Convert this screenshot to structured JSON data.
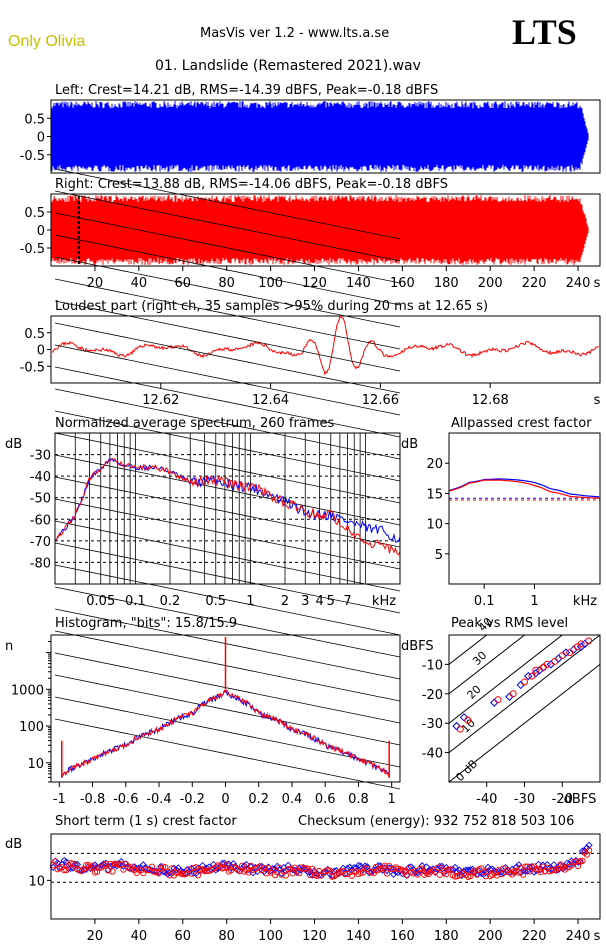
{
  "header": {
    "app_title": "MasVis ver 1.2 - www.lts.a.se",
    "brand": "Only Olivia",
    "logo_text": "LTS",
    "file_name": "01. Landslide (Remastered 2021).wav"
  },
  "colors": {
    "left": "#0000ff",
    "right": "#ff0000",
    "brand": "#c8c000"
  },
  "chart_data": [
    {
      "id": "left_waveform",
      "type": "area",
      "title": "Left: Crest=14.21 dB, RMS=-14.39 dBFS, Peak=-0.18 dBFS",
      "ylim": [
        -1,
        1
      ],
      "yticks": [
        "0.5",
        "0",
        "-0.5"
      ],
      "xlim": [
        0,
        250
      ],
      "series": [
        {
          "color": "#0000ff",
          "envelope": 0.97,
          "fade_out_start": 241,
          "end": 245
        }
      ]
    },
    {
      "id": "right_waveform",
      "type": "area",
      "title": "Right: Crest=13.88 dB, RMS=-14.06 dBFS, Peak=-0.18 dBFS",
      "ylim": [
        -1,
        1
      ],
      "yticks": [
        "0.5",
        "0",
        "-0.5"
      ],
      "xlim": [
        0,
        250
      ],
      "xticks": [
        "20",
        "40",
        "60",
        "80",
        "100",
        "120",
        "140",
        "160",
        "180",
        "200",
        "220",
        "240"
      ],
      "xunit": "s",
      "marker_at": 12.65,
      "series": [
        {
          "color": "#ff0000",
          "envelope": 0.97,
          "fade_out_start": 241,
          "end": 245
        }
      ]
    },
    {
      "id": "loudest_part",
      "type": "line",
      "title": "Loudest part (right ch, 35 samples >95% during 20 ms at 12.65 s)",
      "ylim": [
        -1,
        1
      ],
      "yticks": [
        "0.5",
        "0",
        "-0.5"
      ],
      "xlim": [
        12.6,
        12.7
      ],
      "xticks": [
        "12.62",
        "12.64",
        "12.66",
        "12.68"
      ],
      "xunit": "s",
      "series": [
        {
          "color": "#ff0000"
        }
      ]
    },
    {
      "id": "spectrum",
      "type": "line",
      "title": "Normalized average spectrum, 260 frames",
      "ylabel": "dB",
      "yticks": [
        "-30",
        "-40",
        "-50",
        "-60",
        "-70",
        "-80"
      ],
      "ylim": [
        -90,
        -20
      ],
      "xlog": true,
      "xlim": [
        0.02,
        20
      ],
      "xticks": [
        "0.05",
        "0.1",
        "0.2",
        "0.5",
        "1",
        "2",
        "3",
        "4",
        "5",
        "7"
      ],
      "xunit": "kHz",
      "series": [
        {
          "color": "#ff0000",
          "x": [
            0.02,
            0.03,
            0.04,
            0.06,
            0.08,
            0.1,
            0.15,
            0.2,
            0.3,
            0.5,
            0.7,
            1,
            1.5,
            2,
            3,
            5,
            7,
            10,
            15,
            20
          ],
          "y": [
            -69,
            -58,
            -41,
            -32,
            -35,
            -36,
            -36,
            -38,
            -43,
            -42,
            -44,
            -45,
            -49,
            -52,
            -57,
            -58,
            -64,
            -70,
            -73,
            -76
          ]
        },
        {
          "color": "#0000ff",
          "x": [
            0.02,
            0.03,
            0.04,
            0.06,
            0.08,
            0.1,
            0.15,
            0.2,
            0.3,
            0.5,
            0.7,
            1,
            1.5,
            2,
            3,
            5,
            7,
            10,
            15,
            20
          ],
          "y": [
            -69,
            -58,
            -41,
            -32,
            -35,
            -36,
            -36,
            -38,
            -43,
            -42,
            -44,
            -45,
            -49,
            -52,
            -57,
            -58,
            -61,
            -64,
            -66,
            -70
          ]
        }
      ]
    },
    {
      "id": "allpassed_crest",
      "type": "line",
      "title": "Allpassed crest factor",
      "ylabel": "dB",
      "yticks": [
        "20",
        "15",
        "10",
        "5"
      ],
      "ylim": [
        0,
        25
      ],
      "xlog": true,
      "xlim": [
        0.02,
        20
      ],
      "xticks": [
        "0.1",
        "1"
      ],
      "xunit": "kHz",
      "series": [
        {
          "color": "#0000ff",
          "x": [
            0.02,
            0.05,
            0.1,
            0.2,
            0.5,
            1,
            2,
            5,
            10,
            20
          ],
          "y": [
            15.5,
            16.8,
            17.3,
            17.4,
            17.2,
            16.8,
            15.8,
            14.9,
            14.6,
            14.4
          ]
        },
        {
          "color": "#ff0000",
          "x": [
            0.02,
            0.05,
            0.1,
            0.2,
            0.5,
            1,
            2,
            5,
            10,
            20
          ],
          "y": [
            15.4,
            16.7,
            17.2,
            17.2,
            16.9,
            16.3,
            15.3,
            14.5,
            14.3,
            14.2
          ]
        }
      ],
      "reference_lines": [
        {
          "color": "#0000ff",
          "y": 14.2
        },
        {
          "color": "#ff0000",
          "y": 13.9
        }
      ]
    },
    {
      "id": "histogram",
      "type": "line",
      "title": "Histogram, \"bits\": 15.8/15.9",
      "ylabel": "n",
      "ylog": true,
      "yticks": [
        "1000",
        "100",
        "10"
      ],
      "ylim": [
        3,
        30000
      ],
      "xlim": [
        -1.05,
        1.05
      ],
      "xticks": [
        "-1",
        "-0.8",
        "-0.6",
        "-0.4",
        "-0.2",
        "0",
        "0.2",
        "0.4",
        "0.6",
        "0.8",
        "1"
      ],
      "series": [
        {
          "color": "#0000ff",
          "x": [
            -0.98,
            -0.8,
            -0.6,
            -0.4,
            -0.2,
            -0.02,
            0,
            0.02,
            0.2,
            0.4,
            0.6,
            0.8,
            0.98
          ],
          "y": [
            5,
            12,
            30,
            80,
            220,
            700,
            1000,
            700,
            220,
            80,
            30,
            12,
            5
          ]
        },
        {
          "color": "#ff0000",
          "x": [
            -0.98,
            -0.8,
            -0.6,
            -0.4,
            -0.2,
            -0.02,
            0,
            0.02,
            0.2,
            0.4,
            0.6,
            0.8,
            0.98
          ],
          "y": [
            5,
            12,
            30,
            80,
            220,
            700,
            1000,
            700,
            220,
            80,
            30,
            12,
            5
          ]
        }
      ]
    },
    {
      "id": "peak_vs_rms",
      "type": "scatter",
      "title": "Peak vs RMS level",
      "ylabel": "dBFS",
      "xunit": "dBFS",
      "yticks": [
        "-10",
        "-20",
        "-30",
        "-40"
      ],
      "xticks": [
        "-40",
        "-30",
        "-20"
      ],
      "xlim": [
        -50,
        -10
      ],
      "ylim": [
        -50,
        0
      ],
      "crest_lines": [
        "40",
        "30",
        "20",
        "10",
        "0 dB"
      ],
      "series": [
        {
          "color": "#0000ff",
          "x": [
            -48,
            -46,
            -38,
            -34,
            -31,
            -29,
            -27,
            -26,
            -25,
            -23,
            -21,
            -19,
            -17,
            -15,
            -14
          ],
          "y": [
            -31,
            -28,
            -23,
            -21,
            -17,
            -14,
            -13,
            -12,
            -11,
            -10,
            -8,
            -6,
            -5,
            -4,
            -3
          ]
        },
        {
          "color": "#ff0000",
          "x": [
            -47,
            -45,
            -37,
            -33,
            -30,
            -28,
            -27,
            -25,
            -24,
            -22,
            -20,
            -18,
            -16,
            -15,
            -13
          ],
          "y": [
            -32,
            -29,
            -22,
            -20,
            -16,
            -14,
            -12,
            -11,
            -10,
            -9,
            -7,
            -6,
            -4,
            -3,
            -2
          ]
        }
      ]
    },
    {
      "id": "short_term_crest",
      "type": "scatter",
      "title": "Short term (1 s) crest factor",
      "annotation": "Checksum (energy):   932 752 818 503 106",
      "ylabel": "dB",
      "yticks": [
        "10"
      ],
      "ylim": [
        0,
        22
      ],
      "xlim": [
        0,
        250
      ],
      "xticks": [
        "20",
        "40",
        "60",
        "80",
        "100",
        "120",
        "140",
        "160",
        "180",
        "200",
        "220",
        "240"
      ],
      "xunit": "s",
      "dashed_lines": [
        9.5,
        17
      ],
      "series": [
        {
          "color": "#0000ff",
          "x": [
            0,
            10,
            20,
            30,
            40,
            50,
            60,
            70,
            80,
            90,
            100,
            110,
            120,
            130,
            140,
            150,
            160,
            170,
            180,
            190,
            200,
            210,
            220,
            230,
            240,
            245
          ],
          "y": [
            14.5,
            14,
            13,
            14,
            13,
            13,
            12,
            13,
            13.5,
            13,
            12.5,
            13,
            12,
            12,
            13,
            13,
            12,
            13,
            12.5,
            12,
            12.5,
            13,
            13,
            13.5,
            15,
            19
          ]
        },
        {
          "color": "#ff0000",
          "x": [
            0,
            10,
            20,
            30,
            40,
            50,
            60,
            70,
            80,
            90,
            100,
            110,
            120,
            130,
            140,
            150,
            160,
            170,
            180,
            190,
            200,
            210,
            220,
            230,
            240,
            245
          ],
          "y": [
            14,
            13.5,
            13,
            13.5,
            13,
            12.5,
            12,
            12.5,
            13,
            13,
            12,
            12.5,
            12,
            11.5,
            12.5,
            13,
            12,
            12.5,
            12,
            12,
            12,
            12.5,
            12.5,
            13,
            14.5,
            18
          ]
        }
      ]
    }
  ]
}
